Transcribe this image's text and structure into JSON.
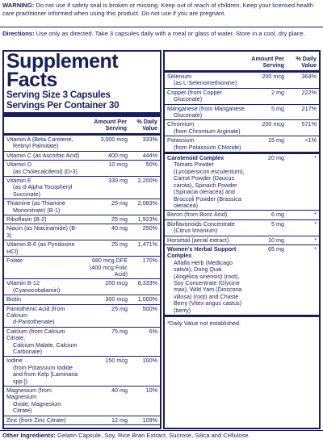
{
  "warning": {
    "label": "WARNING:",
    "text": "Do not use if safety seal is broken or missing. Keep out of reach of children. Keep your licensed health care practitioner informed when using this product. Do not use if you are pregnant."
  },
  "directions": {
    "label": "Directions:",
    "text": "Use only as directed. Take 3 capsules daily with a meal or glass of water. Store in a cool, dry place."
  },
  "facts": {
    "title_line1": "Supplement",
    "title_line2": "Facts",
    "serving_size": "Serving Size 3 Capsules",
    "servings_per_container": "Servings Per Container 30",
    "col_amount": "Amount Per Serving",
    "col_dv": "% Daily Value"
  },
  "left_rows": [
    {
      "name": "Vitamin A (Beta Carotene,",
      "sub": "Retinyl Palmitate)",
      "amount": "3,000 mcg",
      "dv": "333%"
    },
    {
      "name": "Vitamin C (as Ascorbic Acid)",
      "sub": "",
      "amount": "400 mg",
      "dv": "444%"
    },
    {
      "name": "Vitamin D",
      "sub": "(as Cholecalciferol) (D-3)",
      "amount": "10 mcg",
      "dv": "50%"
    },
    {
      "name": "Vitamin E",
      "sub": "(as d-Alpha Tocopheryl Succinate)",
      "amount": "330 mg",
      "dv": "2,200%"
    },
    {
      "name": "Thiamine (as Thiamine",
      "sub": "Mononitrate) (B-1)",
      "amount": "25 mg",
      "dv": "2,083%"
    },
    {
      "name": "Riboflavin (B-2)",
      "sub": "",
      "amount": "25 mg",
      "dv": "1,923%"
    },
    {
      "name": "Niacin (as Niacinamide) (B-3)",
      "sub": "",
      "amount": "40 mg",
      "dv": "250%"
    },
    {
      "name": "Vitamin B-6 (as Pyridoxine HCl)",
      "sub": "",
      "amount": "25 mg",
      "dv": "1,471%"
    },
    {
      "name": "Folate",
      "sub": "",
      "amount": "680 mcg DFE (400 mcg Folic Acid)",
      "dv": "170%"
    },
    {
      "name": "Vitamin B-12",
      "sub": "(Cyanocobalamin)",
      "amount": "200 mcg",
      "dv": "8,333%"
    },
    {
      "name": "Biotin",
      "sub": "",
      "amount": "300 mcg",
      "dv": "1,000%"
    },
    {
      "name": "Pantothenic Acid (from Calcium",
      "sub": "d-Pantothenate)",
      "amount": "25 mg",
      "dv": "500%"
    },
    {
      "name": "Calcium (from Calcium Citrate,",
      "sub": "Calcium Malate, Calcium Carbonate)",
      "amount": "75 mg",
      "dv": "6%"
    },
    {
      "name": "Iodine",
      "sub": "(from Potassium Iodide and from Kelp [Laminaria spp.])",
      "amount": "150 mcg",
      "dv": "100%"
    },
    {
      "name": "Magnesium (from Magnesium",
      "sub": "Oxide, Magnesium Citrate)",
      "amount": "40 mg",
      "dv": "10%"
    },
    {
      "name": "Zinc (from Zinc Citrate)",
      "sub": "",
      "amount": "12 mg",
      "dv": "109%"
    }
  ],
  "right_rows": [
    {
      "name": "Selenium",
      "sub": "(as L-Selenomethionine)",
      "amount": "200 mcg",
      "dv": "364%"
    },
    {
      "name": "Copper (from Copper",
      "sub": "Gluconate)",
      "amount": "2 mg",
      "dv": "222%"
    },
    {
      "name": "Manganese (from Manganese",
      "sub": "Gluconate)",
      "amount": "5 mg",
      "dv": "217%"
    },
    {
      "name": "Chromium",
      "sub": "(from Chromium Arginate)",
      "amount": "200 mcg",
      "dv": "571%"
    },
    {
      "name": "Potassium",
      "sub": "(from Potassium Chloride)",
      "amount": "15 mg",
      "dv": "<1%"
    }
  ],
  "blends": [
    {
      "name": "Carotenoid Complex",
      "amount": "20 mg",
      "dv": "*",
      "desc": "Tomato Powder (Lycopersicon esculentum), Carrot Powder (Daucus carota), Spinach Powder (Spinacia oleracea) and Broccoli Powder (Brassica oleracea)"
    },
    {
      "name": "Boron (from Boric Acid)",
      "amount": "6 mg",
      "dv": "*",
      "desc": "",
      "plain": true
    },
    {
      "name": "Bioflavonoids Concentrate",
      "amount": "5 mg",
      "dv": "*",
      "desc": "(Citrus limonium)",
      "plain": true
    },
    {
      "name": "Horsetail (aerial extract)",
      "amount": "10 mg",
      "dv": "*",
      "desc": "",
      "plain": true
    },
    {
      "name": "Women's Herbal Support Complex",
      "amount": "65 mg",
      "dv": "*",
      "desc": "Alfalfa Herb (Medicago sativa), Dong Quai (Angelica sinensis) (root), Soy Concentrate (Glycine max), Wild Yam (Dioscoria villosa) (root) and Chaste Berry (Vitex angus castus) (berry)"
    }
  ],
  "footnote": "*Daily Value not established.",
  "other": {
    "label": "Other Ingredients:",
    "text": "Gelatin Capsule, Soy, Rice Bran Extract, Sucrose, Silica and Cellulose."
  }
}
